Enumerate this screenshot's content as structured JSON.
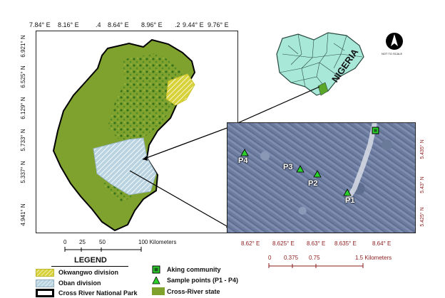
{
  "left_map": {
    "x_ticks": [
      "7.84° E",
      "8.16° E",
      ".4",
      "8.64° E",
      "8.96° E",
      ".2",
      "9.44° E",
      "9.76° E"
    ],
    "y_ticks": [
      "6.921° N",
      "6.525° N",
      "6.129° N",
      "5.733° N",
      "5.337° N",
      "4.941° N"
    ],
    "scale": {
      "ticks": [
        "0",
        "25",
        "50",
        "100 Kilometers"
      ]
    }
  },
  "inset": {
    "x_ticks": [
      "8.62° E",
      "8.625° E",
      "8.63° E",
      "8.635° E",
      "8.64° E"
    ],
    "y_ticks": [
      "5.435° N",
      "5.43° N",
      "5.425° N"
    ],
    "scale": {
      "ticks": [
        "0",
        "0.375",
        "0.75",
        "1.5 Kilometers"
      ]
    },
    "points": [
      {
        "label": "P4"
      },
      {
        "label": "P3"
      },
      {
        "label": "P2"
      },
      {
        "label": "P1"
      }
    ]
  },
  "nigeria_label": "NIGERIA",
  "north_arrow": {
    "letter": "N",
    "note": "NOT TO SCALE"
  },
  "legend": {
    "title": "LEGEND",
    "items": [
      {
        "label": "Okwangwo division"
      },
      {
        "label": "Oban division"
      },
      {
        "label": "Cross River National Park"
      }
    ],
    "items_right": [
      {
        "label": "Aking community"
      },
      {
        "label": "Sample points (P1 - P4)"
      },
      {
        "label": "Cross-River state"
      }
    ]
  },
  "colors": {
    "state_fill": "#7fa12e",
    "forest": "#3d7a1f",
    "okwangwo": "#d8d23a",
    "oban": "#a9c7d8",
    "inset_bg": "#6f7f9e",
    "point": "#2bd12b",
    "label_red": "#8b1a1a"
  }
}
